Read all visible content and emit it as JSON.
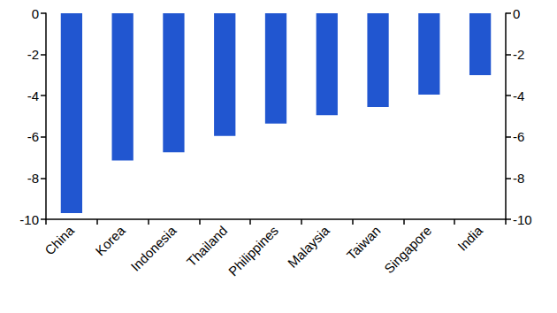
{
  "chart_data": {
    "type": "bar",
    "categories": [
      "China",
      "Korea",
      "Indonesia",
      "Thailand",
      "Philippines",
      "Malaysia",
      "Taiwan",
      "Singapore",
      "India"
    ],
    "values": [
      -9.7,
      -7.15,
      -6.75,
      -5.95,
      -5.35,
      -4.95,
      -4.55,
      -3.95,
      -3.0
    ],
    "color": "#2156d0",
    "ylim": [
      -10,
      0
    ],
    "yticks": [
      -10,
      -8,
      -6,
      -4,
      -2,
      0
    ],
    "grid": false
  }
}
